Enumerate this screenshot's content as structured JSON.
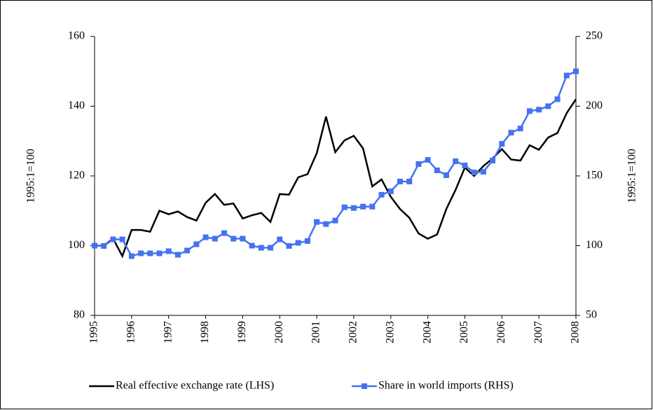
{
  "chart_data": {
    "type": "line",
    "x": [
      1995,
      1995.25,
      1995.5,
      1995.75,
      1996,
      1996.25,
      1996.5,
      1996.75,
      1997,
      1997.25,
      1997.5,
      1997.75,
      1998,
      1998.25,
      1998.5,
      1998.75,
      1999,
      1999.25,
      1999.5,
      1999.75,
      2000,
      2000.25,
      2000.5,
      2000.75,
      2001,
      2001.25,
      2001.5,
      2001.75,
      2002,
      2002.25,
      2002.5,
      2002.75,
      2003,
      2003.25,
      2003.5,
      2003.75,
      2004,
      2004.25,
      2004.5,
      2004.75,
      2005,
      2005.25,
      2005.5,
      2005.75,
      2006,
      2006.25,
      2006.5,
      2006.75,
      2007,
      2007.25,
      2007.5,
      2007.75,
      2008
    ],
    "series": [
      {
        "name": "Real effective exchange rate (LHS)",
        "color": "#000000",
        "values": [
          100,
          100,
          102,
          97,
          104.5,
          104.5,
          104,
          110,
          109,
          109.8,
          108.2,
          107.2,
          112.3,
          114.8,
          111.7,
          112.1,
          107.8,
          108.7,
          109.4,
          106.8,
          114.8,
          114.6,
          119.6,
          120.5,
          126.5,
          137,
          126.8,
          130.2,
          131.5,
          127.9,
          117,
          119,
          114,
          110.5,
          108,
          103.5,
          102,
          103.2,
          110.5,
          116,
          122.4,
          120,
          122.8,
          125,
          127.7,
          124.7,
          124.4,
          128.8,
          127.5,
          131,
          132.3,
          138,
          142
        ]
      },
      {
        "name": "Share in world imports (RHS)",
        "color": "#4472f0",
        "axis": "y2",
        "values": [
          100,
          99.8,
          104.5,
          104.5,
          92.5,
          94.5,
          94.5,
          94.5,
          96,
          93.5,
          96.5,
          101,
          106,
          105,
          109,
          105,
          105,
          100,
          98.5,
          98.5,
          104.5,
          99.8,
          102,
          103.3,
          117,
          115.5,
          118,
          127.5,
          127,
          128,
          128,
          136.5,
          139,
          146,
          146,
          158.5,
          161.5,
          154,
          150.5,
          160.5,
          157.5,
          152.5,
          153,
          161,
          173,
          181,
          184,
          196.5,
          197.5,
          200,
          205,
          222,
          225
        ]
      }
    ],
    "xlim": [
      1995,
      2008
    ],
    "xticks": [
      1995,
      1996,
      1997,
      1998,
      1999,
      2000,
      2001,
      2002,
      2003,
      2004,
      2005,
      2006,
      2007,
      2008
    ],
    "ylim": [
      80,
      160
    ],
    "yticks": [
      80,
      100,
      120,
      140,
      160
    ],
    "y2lim": [
      50,
      250
    ],
    "y2ticks": [
      50,
      100,
      150,
      200,
      250
    ],
    "ylabel": "1995:1=100",
    "y2label": "1995:1=100",
    "legend": "bottom"
  }
}
